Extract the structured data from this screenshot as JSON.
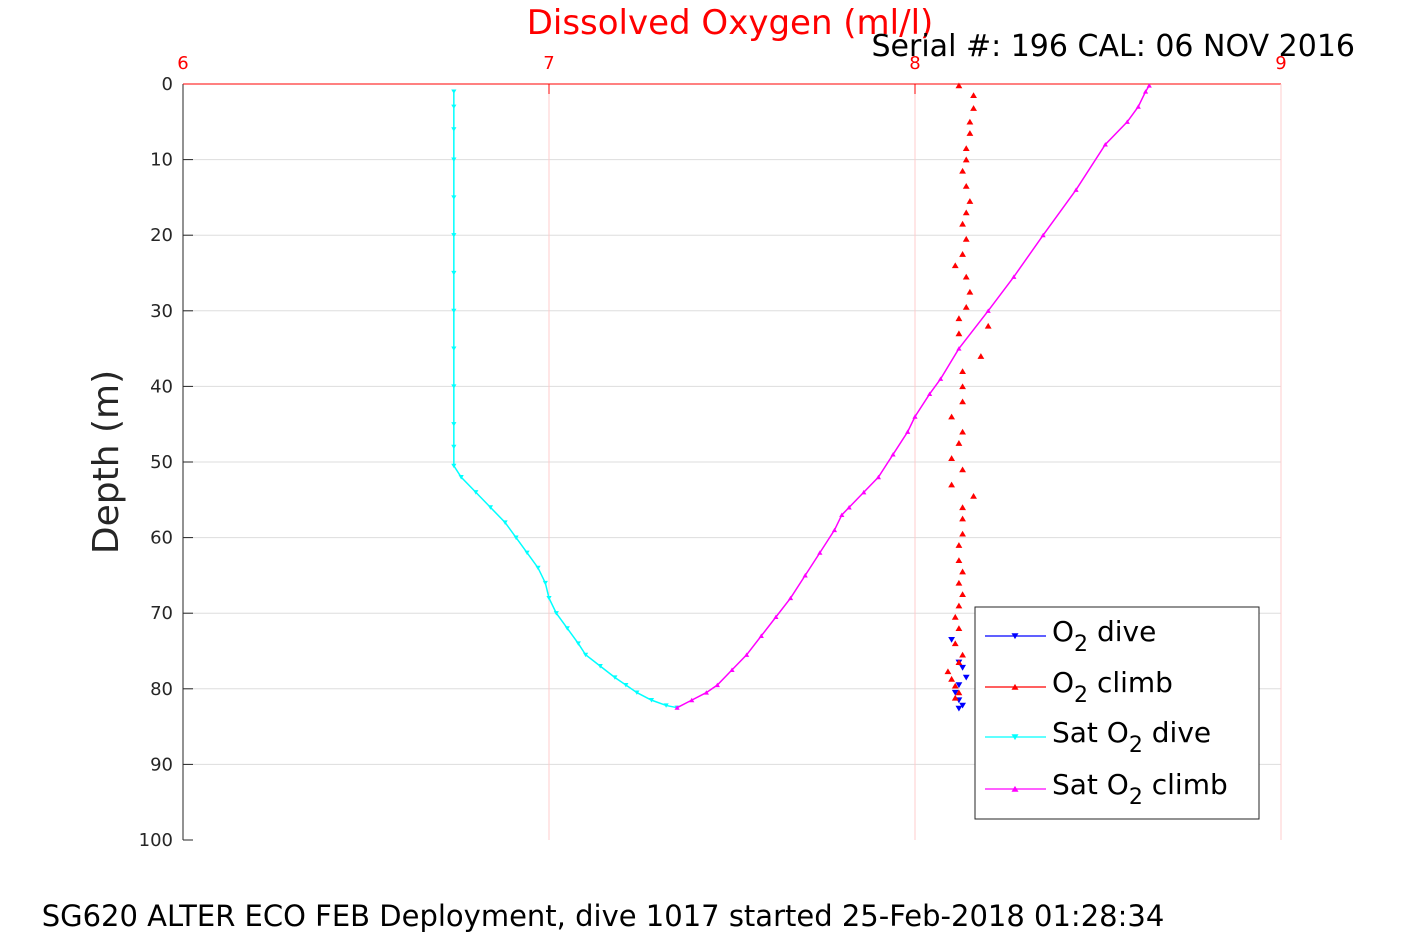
{
  "chart_data": {
    "type": "line",
    "title": "Dissolved Oxygen (ml/l)",
    "subtitle": "Serial #: 196  CAL: 06 NOV 2016",
    "caption": "SG620 ALTER ECO FEB Deployment, dive 1017 started 25-Feb-2018 01:28:34",
    "ylabel": "Depth (m)",
    "xlabel": "",
    "xlim": [
      6,
      9
    ],
    "ylim": [
      0,
      100
    ],
    "y_reversed": true,
    "x_axis_position": "top",
    "x_ticks": [
      "6",
      "7",
      "8",
      "9"
    ],
    "y_ticks": [
      "0",
      "10",
      "20",
      "30",
      "40",
      "50",
      "60",
      "70",
      "80",
      "90",
      "100"
    ],
    "grid": true,
    "legend_position": "bottom-right",
    "colors": {
      "o2_dive": "#0000ff",
      "o2_climb": "#ff0000",
      "sat_dive": "#00ffff",
      "sat_climb": "#ff00ff",
      "title": "#ff0000",
      "x_ticks": "#ff0000",
      "x_grid": "#ffcccc",
      "y_grid": "#dddddd"
    },
    "legend": [
      {
        "base": "O",
        "sub": "2",
        "rest": " dive",
        "prefix": ""
      },
      {
        "base": "O",
        "sub": "2",
        "rest": " climb",
        "prefix": ""
      },
      {
        "base": "O",
        "sub": "2",
        "rest": " dive",
        "prefix": "Sat "
      },
      {
        "base": "O",
        "sub": "2",
        "rest": " climb",
        "prefix": "Sat "
      }
    ],
    "series": [
      {
        "key": "o2_dive",
        "marker": "triangle-down",
        "points": [
          [
            8.1,
            73.5
          ],
          [
            8.12,
            76.5
          ],
          [
            8.13,
            77.2
          ],
          [
            8.14,
            78.5
          ],
          [
            8.12,
            79.5
          ],
          [
            8.11,
            80.5
          ],
          [
            8.12,
            81.5
          ],
          [
            8.13,
            82.2
          ],
          [
            8.12,
            82.6
          ]
        ]
      },
      {
        "key": "o2_climb",
        "marker": "triangle-up",
        "points": [
          [
            8.12,
            0.2
          ],
          [
            8.16,
            1.5
          ],
          [
            8.16,
            3.2
          ],
          [
            8.15,
            5
          ],
          [
            8.15,
            6.5
          ],
          [
            8.14,
            8.5
          ],
          [
            8.14,
            10
          ],
          [
            8.13,
            11.5
          ],
          [
            8.14,
            13.5
          ],
          [
            8.15,
            15.5
          ],
          [
            8.14,
            17
          ],
          [
            8.13,
            18.5
          ],
          [
            8.14,
            20.5
          ],
          [
            8.13,
            22.5
          ],
          [
            8.11,
            24
          ],
          [
            8.14,
            25.5
          ],
          [
            8.15,
            27.5
          ],
          [
            8.14,
            29.5
          ],
          [
            8.12,
            31
          ],
          [
            8.2,
            32
          ],
          [
            8.12,
            33
          ],
          [
            8.18,
            36
          ],
          [
            8.13,
            38
          ],
          [
            8.13,
            40
          ],
          [
            8.13,
            42
          ],
          [
            8.1,
            44
          ],
          [
            8.13,
            46
          ],
          [
            8.12,
            47.5
          ],
          [
            8.1,
            49.5
          ],
          [
            8.13,
            51
          ],
          [
            8.1,
            53
          ],
          [
            8.16,
            54.5
          ],
          [
            8.13,
            56
          ],
          [
            8.13,
            57.5
          ],
          [
            8.13,
            59.5
          ],
          [
            8.12,
            61
          ],
          [
            8.12,
            63
          ],
          [
            8.13,
            64.5
          ],
          [
            8.12,
            66
          ],
          [
            8.13,
            67.5
          ],
          [
            8.12,
            69
          ],
          [
            8.11,
            70.5
          ],
          [
            8.12,
            72
          ],
          [
            8.11,
            74
          ],
          [
            8.13,
            75.5
          ],
          [
            8.12,
            76.5
          ],
          [
            8.09,
            77.7
          ],
          [
            8.1,
            78.7
          ],
          [
            8.11,
            79.6
          ],
          [
            8.12,
            80.5
          ],
          [
            8.11,
            81.2
          ]
        ]
      },
      {
        "key": "sat_dive",
        "marker": "triangle-down",
        "points": [
          [
            6.74,
            1
          ],
          [
            6.74,
            3
          ],
          [
            6.74,
            6
          ],
          [
            6.74,
            10
          ],
          [
            6.74,
            15
          ],
          [
            6.74,
            20
          ],
          [
            6.74,
            25
          ],
          [
            6.74,
            30
          ],
          [
            6.74,
            35
          ],
          [
            6.74,
            40
          ],
          [
            6.74,
            45
          ],
          [
            6.74,
            48
          ],
          [
            6.74,
            50.5
          ],
          [
            6.76,
            52
          ],
          [
            6.8,
            54
          ],
          [
            6.84,
            56
          ],
          [
            6.88,
            58
          ],
          [
            6.91,
            60
          ],
          [
            6.94,
            62
          ],
          [
            6.97,
            64
          ],
          [
            6.99,
            66
          ],
          [
            7.0,
            68
          ],
          [
            7.02,
            70
          ],
          [
            7.05,
            72
          ],
          [
            7.08,
            74
          ],
          [
            7.1,
            75.5
          ],
          [
            7.14,
            77
          ],
          [
            7.18,
            78.5
          ],
          [
            7.21,
            79.5
          ],
          [
            7.24,
            80.5
          ],
          [
            7.28,
            81.5
          ],
          [
            7.32,
            82.2
          ],
          [
            7.35,
            82.5
          ]
        ]
      },
      {
        "key": "sat_climb",
        "marker": "triangle-up",
        "points": [
          [
            7.35,
            82.5
          ],
          [
            7.39,
            81.5
          ],
          [
            7.43,
            80.5
          ],
          [
            7.46,
            79.5
          ],
          [
            7.5,
            77.5
          ],
          [
            7.54,
            75.5
          ],
          [
            7.58,
            73
          ],
          [
            7.62,
            70.5
          ],
          [
            7.66,
            68
          ],
          [
            7.7,
            65
          ],
          [
            7.74,
            62
          ],
          [
            7.78,
            59
          ],
          [
            7.8,
            57
          ],
          [
            7.82,
            56
          ],
          [
            7.86,
            54
          ],
          [
            7.9,
            52
          ],
          [
            7.94,
            49
          ],
          [
            7.98,
            46
          ],
          [
            8.0,
            44
          ],
          [
            8.04,
            41
          ],
          [
            8.07,
            39
          ],
          [
            8.12,
            35
          ],
          [
            8.2,
            30
          ],
          [
            8.27,
            25.5
          ],
          [
            8.35,
            20
          ],
          [
            8.44,
            14
          ],
          [
            8.52,
            8
          ],
          [
            8.58,
            5
          ],
          [
            8.61,
            3
          ],
          [
            8.63,
            1
          ],
          [
            8.64,
            0.2
          ]
        ]
      }
    ]
  }
}
